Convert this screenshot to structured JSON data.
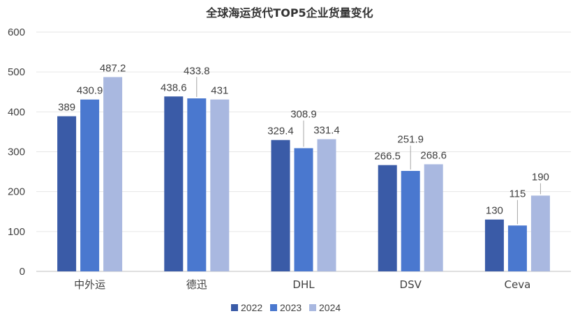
{
  "chart_data": {
    "type": "bar",
    "title": "全球海运货代TOP5企业货量变化",
    "categories": [
      "中外运",
      "德迅",
      "DHL",
      "DSV",
      "Ceva"
    ],
    "series": [
      {
        "name": "2022",
        "color": "#3a5ba7",
        "values": [
          389,
          438.6,
          329.4,
          266.5,
          130
        ]
      },
      {
        "name": "2023",
        "color": "#4a78cf",
        "values": [
          430.9,
          433.8,
          308.9,
          251.9,
          115
        ]
      },
      {
        "name": "2024",
        "color": "#a9b8e0",
        "values": [
          487.2,
          431,
          331.4,
          268.6,
          190
        ]
      }
    ],
    "ylim": [
      0,
      600
    ],
    "yticks": [
      0,
      100,
      200,
      300,
      400,
      500,
      600
    ],
    "grid": true,
    "legend": "bottom",
    "xlabel": "",
    "ylabel": ""
  }
}
